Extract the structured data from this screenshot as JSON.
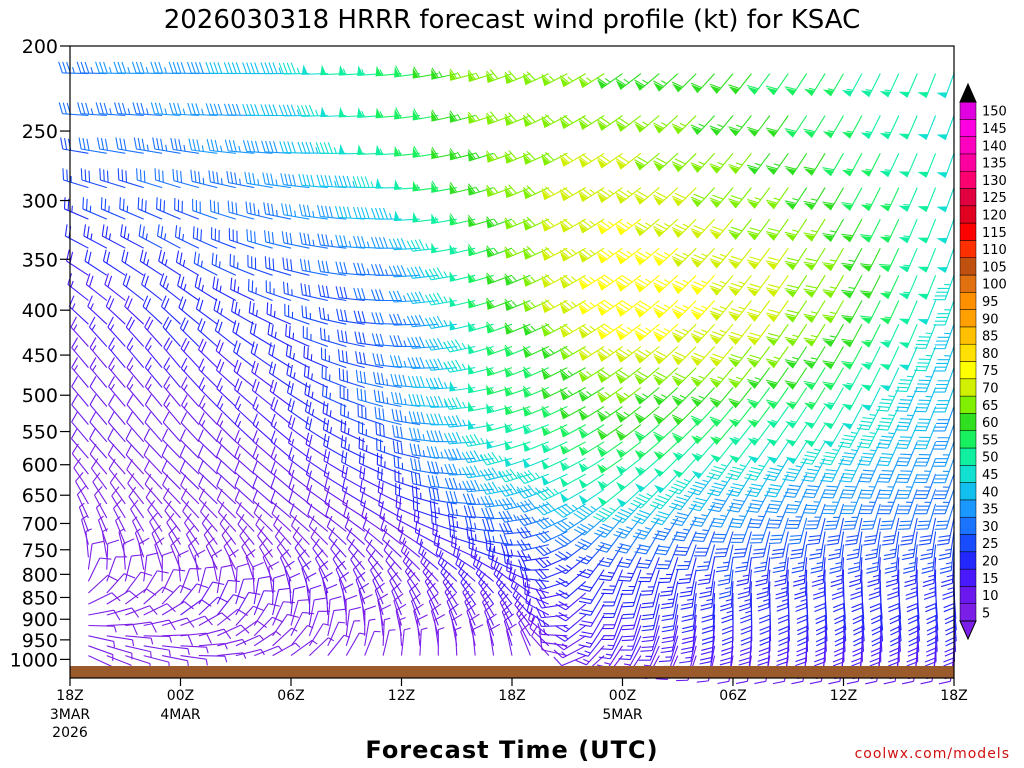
{
  "chart_data": {
    "type": "wind-barb-profile",
    "title": "2026030318 HRRR forecast wind profile (kt) for KSAC",
    "xlabel": "Forecast Time (UTC)",
    "credit": "coolwx.com/models",
    "y_axis": {
      "scale": "log",
      "inverted": true,
      "ticks": [
        200,
        250,
        300,
        350,
        400,
        450,
        500,
        550,
        600,
        650,
        700,
        750,
        800,
        850,
        900,
        950,
        1000
      ]
    },
    "x_axis": {
      "ticks": [
        {
          "hour": 0,
          "label": "18Z",
          "sub1": "3MAR",
          "sub2": "2026"
        },
        {
          "hour": 6,
          "label": "00Z",
          "sub1": "4MAR",
          "sub2": ""
        },
        {
          "hour": 12,
          "label": "06Z",
          "sub1": "",
          "sub2": ""
        },
        {
          "hour": 18,
          "label": "12Z",
          "sub1": "",
          "sub2": ""
        },
        {
          "hour": 24,
          "label": "18Z",
          "sub1": "",
          "sub2": ""
        },
        {
          "hour": 30,
          "label": "00Z",
          "sub1": "5MAR",
          "sub2": ""
        },
        {
          "hour": 36,
          "label": "06Z",
          "sub1": "",
          "sub2": ""
        },
        {
          "hour": 42,
          "label": "12Z",
          "sub1": "",
          "sub2": ""
        },
        {
          "hour": 48,
          "label": "18Z",
          "sub1": "",
          "sub2": ""
        }
      ]
    },
    "colorbar": {
      "levels": [
        5,
        10,
        15,
        20,
        25,
        30,
        35,
        40,
        45,
        50,
        55,
        60,
        65,
        70,
        75,
        80,
        85,
        90,
        95,
        100,
        105,
        110,
        115,
        120,
        125,
        130,
        135,
        140,
        145,
        150
      ],
      "colors": [
        "#7a1ee8",
        "#6a18ee",
        "#4a1aff",
        "#2228ff",
        "#1a4cff",
        "#1a74ff",
        "#1a98ff",
        "#12c0f0",
        "#12e0d0",
        "#10f0a0",
        "#18f060",
        "#30e020",
        "#80f000",
        "#d0f000",
        "#ffff00",
        "#ffe000",
        "#ffc000",
        "#ffa000",
        "#ff9000",
        "#e07010",
        "#c05010",
        "#ff3000",
        "#ff0000",
        "#e00020",
        "#e00040",
        "#ff0070",
        "#ff00a0",
        "#ff00c0",
        "#ff00e0",
        "#e000e0"
      ]
    },
    "ground_color": "#9b5a2c",
    "wind_speed_grid_kt": {
      "hours": [
        0,
        6,
        12,
        18,
        24,
        30,
        36,
        42,
        48
      ],
      "levels_hpa": [
        200,
        250,
        300,
        350,
        400,
        450,
        500,
        550,
        600,
        650,
        700,
        750,
        800,
        850,
        900,
        950,
        1000
      ],
      "speed": [
        [
          35,
          38,
          45,
          58,
          70,
          62,
          60,
          55,
          50
        ],
        [
          30,
          35,
          40,
          55,
          68,
          70,
          65,
          58,
          48
        ],
        [
          25,
          30,
          35,
          48,
          66,
          75,
          70,
          62,
          50
        ],
        [
          20,
          25,
          30,
          35,
          62,
          78,
          74,
          68,
          48
        ],
        [
          15,
          22,
          25,
          30,
          60,
          80,
          75,
          65,
          45
        ],
        [
          12,
          20,
          22,
          30,
          55,
          72,
          70,
          60,
          42
        ],
        [
          12,
          15,
          20,
          35,
          55,
          65,
          60,
          52,
          40
        ],
        [
          10,
          12,
          18,
          30,
          50,
          60,
          55,
          48,
          38
        ],
        [
          10,
          10,
          15,
          25,
          45,
          55,
          45,
          40,
          35
        ],
        [
          8,
          10,
          12,
          20,
          40,
          50,
          38,
          35,
          32
        ],
        [
          8,
          8,
          10,
          15,
          30,
          35,
          30,
          28,
          28
        ],
        [
          5,
          8,
          8,
          12,
          25,
          25,
          25,
          25,
          25
        ],
        [
          8,
          8,
          10,
          12,
          20,
          22,
          25,
          22,
          22
        ],
        [
          8,
          10,
          10,
          12,
          18,
          20,
          22,
          22,
          22
        ],
        [
          8,
          10,
          10,
          10,
          15,
          18,
          20,
          20,
          20
        ],
        [
          5,
          8,
          8,
          8,
          12,
          15,
          18,
          18,
          18
        ],
        [
          5,
          5,
          5,
          5,
          8,
          10,
          10,
          12,
          12
        ]
      ],
      "direction_deg": [
        [
          270,
          270,
          270,
          265,
          250,
          235,
          220,
          210,
          200
        ],
        [
          275,
          275,
          270,
          265,
          250,
          235,
          220,
          210,
          200
        ],
        [
          290,
          290,
          280,
          270,
          250,
          235,
          220,
          210,
          200
        ],
        [
          300,
          300,
          285,
          270,
          250,
          235,
          220,
          210,
          200
        ],
        [
          310,
          310,
          290,
          270,
          250,
          235,
          220,
          210,
          200
        ],
        [
          320,
          320,
          300,
          275,
          250,
          235,
          220,
          210,
          200
        ],
        [
          320,
          320,
          305,
          280,
          255,
          235,
          220,
          210,
          200
        ],
        [
          320,
          320,
          310,
          285,
          255,
          235,
          220,
          210,
          200
        ],
        [
          320,
          315,
          310,
          290,
          255,
          235,
          215,
          205,
          200
        ],
        [
          330,
          315,
          310,
          295,
          260,
          230,
          210,
          200,
          200
        ],
        [
          340,
          320,
          310,
          300,
          270,
          220,
          200,
          190,
          190
        ],
        [
          350,
          330,
          320,
          310,
          280,
          210,
          190,
          185,
          185
        ],
        [
          20,
          340,
          330,
          320,
          300,
          200,
          185,
          180,
          180
        ],
        [
          60,
          30,
          350,
          330,
          320,
          200,
          180,
          175,
          175
        ],
        [
          90,
          60,
          10,
          340,
          330,
          200,
          180,
          175,
          175
        ],
        [
          110,
          90,
          30,
          350,
          340,
          210,
          185,
          180,
          180
        ],
        [
          120,
          100,
          60,
          10,
          350,
          220,
          190,
          190,
          190
        ]
      ]
    }
  }
}
